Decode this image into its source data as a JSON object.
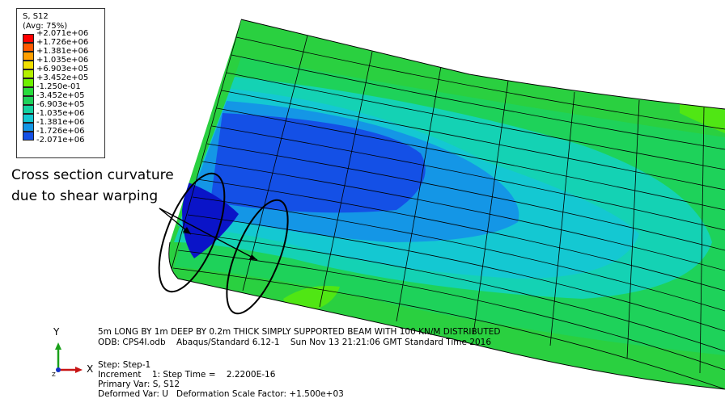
{
  "legend": {
    "title": "S, S12",
    "avg": "(Avg: 75%)",
    "labels": [
      "+2.071e+06",
      "+1.726e+06",
      "+1.381e+06",
      "+1.035e+06",
      "+6.903e+05",
      "+3.452e+05",
      "-1.250e-01",
      "-3.452e+05",
      "-6.903e+05",
      "-1.035e+06",
      "-1.381e+06",
      "-1.726e+06",
      "-2.071e+06"
    ],
    "colors": [
      "#ff0000",
      "#ff5a00",
      "#ffa000",
      "#f0e000",
      "#b4f000",
      "#6ef000",
      "#28dc3c",
      "#1ed25a",
      "#14d2a0",
      "#14c8d2",
      "#1496e6",
      "#1450e6",
      "#0a14c8"
    ]
  },
  "annotation": {
    "line1": "Cross section curvature",
    "line2": "due to shear warping"
  },
  "info": {
    "line1": "5m LONG BY 1m DEEP BY 0.2m THICK SIMPLY SUPPORTED BEAM WITH 100 KN/M DISTRIBUTED",
    "line2": "ODB: CPS4I.odb    Abaqus/Standard 6.12-1    Sun Nov 13 21:21:06 GMT Standard Time 2016",
    "step": "Step: Step-1",
    "increment": "Increment    1: Step Time =    2.2200E-16",
    "primary": "Primary Var: S, S12",
    "deformed": "Deformed Var: U   Deformation Scale Factor: +1.500e+03"
  },
  "triad": {
    "y": "Y",
    "x": "X",
    "z": "Z"
  }
}
